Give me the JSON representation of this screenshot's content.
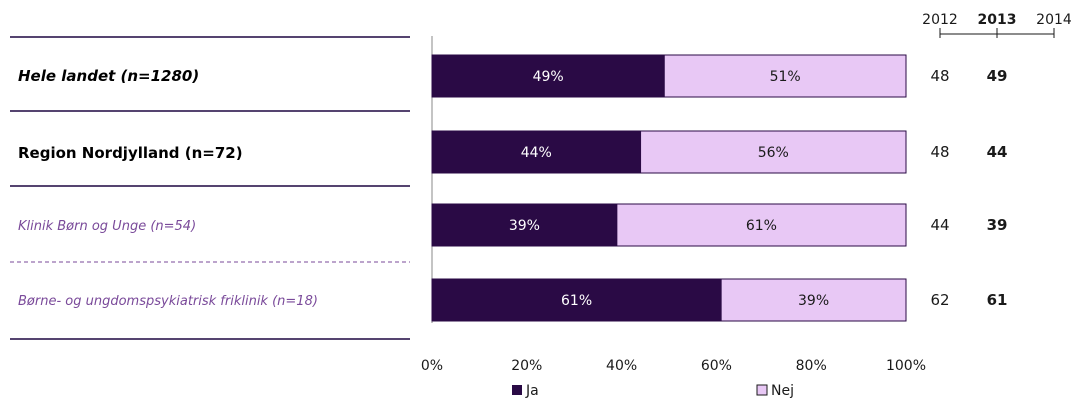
{
  "chart_data": {
    "type": "bar",
    "stacked": true,
    "orientation": "horizontal",
    "categories": [
      "Hele landet (n=1280)",
      "Region Nordjylland (n=72)",
      "Klinik Børn og Unge (n=54)",
      "Børne- og ungdomspsykiatrisk friklinik (n=18)"
    ],
    "series": [
      {
        "name": "Ja",
        "values": [
          49,
          44,
          39,
          61
        ],
        "labels": [
          "49%",
          "44%",
          "39%",
          "61%"
        ],
        "color": "#2a0a45"
      },
      {
        "name": "Nej",
        "values": [
          51,
          56,
          61,
          39
        ],
        "labels": [
          "51%",
          "56%",
          "61%",
          "39%"
        ],
        "color": "#e8c8f5"
      }
    ],
    "xticks": [
      "0%",
      "20%",
      "40%",
      "60%",
      "80%",
      "100%"
    ],
    "xlim": [
      0,
      100
    ],
    "legend_position": "bottom",
    "years": [
      "2012",
      "2013",
      "2014"
    ],
    "year_columns": {
      "2012": [
        "48",
        "48",
        "44",
        "62"
      ],
      "2013": [
        "49",
        "44",
        "39",
        "61"
      ]
    },
    "accent_color": "#3d2a5c",
    "sub_label_color": "#7a4a9a"
  }
}
